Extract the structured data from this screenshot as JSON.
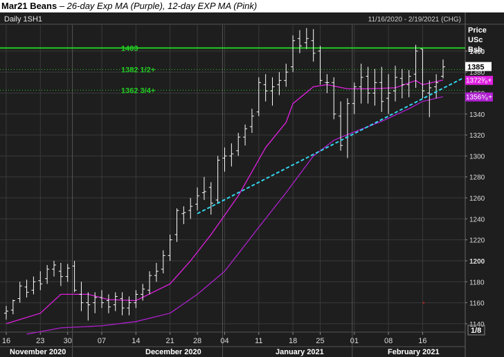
{
  "title": {
    "symbol": "Mar21 Beans",
    "subtitle": " – 26-day Exp MA (Purple), 12-day EXP MA (Pink)"
  },
  "header": {
    "left": "Daily 1SH1",
    "right": "11/16/2020 - 2/19/2021 (CHG)"
  },
  "axis": {
    "label_lines": [
      "Price",
      "USc",
      "Bsh"
    ],
    "y_ticks": [
      "1400",
      "1380",
      "1360",
      "1340",
      "1320",
      "1300",
      "1280",
      "1260",
      "1240",
      "1220",
      "1200",
      "1180",
      "1160",
      "1140"
    ],
    "last_price": "1385",
    "ma_pink_label": "1372³⁄₈+",
    "ma_purple_label": "1356⁵⁄₈+",
    "corner": "1/8"
  },
  "x_axis": {
    "day_ticks": [
      "16",
      "23",
      "30",
      "07",
      "14",
      "21",
      "28",
      "04",
      "11",
      "18",
      "25",
      "01",
      "08",
      "16"
    ],
    "months": [
      "November 2020",
      "December 2020",
      "January 2021",
      "February 2021"
    ]
  },
  "levels": [
    {
      "label": "1403",
      "value": 1403,
      "color": "#22cc22",
      "style": "solid"
    },
    {
      "label": "1382 1/2+",
      "value": 1382.5,
      "color": "#22cc22",
      "style": "dotted"
    },
    {
      "label": "1362 3/4+",
      "value": 1362.75,
      "color": "#22cc22",
      "style": "dotted"
    }
  ],
  "colors": {
    "background": "#1e1e1e",
    "bars": "#ffffff",
    "ma_26_purple": "#b020d0",
    "ma_12_pink": "#e020e0",
    "trendline": "#33d6f0",
    "grid": "#3a3a3a"
  },
  "chart_data": {
    "type": "ohlc",
    "y_range": [
      1132,
      1425
    ],
    "x_range": [
      "2020-11-16",
      "2021-02-19"
    ],
    "bars": [
      {
        "d": "2020-11-16",
        "o": 1150,
        "h": 1157,
        "l": 1144,
        "c": 1152
      },
      {
        "d": "2020-11-17",
        "o": 1153,
        "h": 1163,
        "l": 1149,
        "c": 1162
      },
      {
        "d": "2020-11-18",
        "o": 1164,
        "h": 1180,
        "l": 1160,
        "c": 1176
      },
      {
        "d": "2020-11-19",
        "o": 1175,
        "h": 1182,
        "l": 1165,
        "c": 1170
      },
      {
        "d": "2020-11-20",
        "o": 1172,
        "h": 1185,
        "l": 1168,
        "c": 1180
      },
      {
        "d": "2020-11-23",
        "o": 1181,
        "h": 1190,
        "l": 1172,
        "c": 1178
      },
      {
        "d": "2020-11-24",
        "o": 1183,
        "h": 1196,
        "l": 1178,
        "c": 1192
      },
      {
        "d": "2020-11-25",
        "o": 1192,
        "h": 1200,
        "l": 1185,
        "c": 1196
      },
      {
        "d": "2020-11-27",
        "o": 1190,
        "h": 1198,
        "l": 1176,
        "c": 1185
      },
      {
        "d": "2020-11-30",
        "o": 1185,
        "h": 1197,
        "l": 1180,
        "c": 1193
      },
      {
        "d": "2020-12-01",
        "o": 1195,
        "h": 1200,
        "l": 1170,
        "c": 1172
      },
      {
        "d": "2020-12-02",
        "o": 1168,
        "h": 1180,
        "l": 1152,
        "c": 1160
      },
      {
        "d": "2020-12-03",
        "o": 1160,
        "h": 1170,
        "l": 1143,
        "c": 1158
      },
      {
        "d": "2020-12-04",
        "o": 1160,
        "h": 1170,
        "l": 1150,
        "c": 1165
      },
      {
        "d": "2020-12-07",
        "o": 1165,
        "h": 1172,
        "l": 1155,
        "c": 1160
      },
      {
        "d": "2020-12-08",
        "o": 1162,
        "h": 1168,
        "l": 1150,
        "c": 1156
      },
      {
        "d": "2020-12-09",
        "o": 1158,
        "h": 1170,
        "l": 1152,
        "c": 1166
      },
      {
        "d": "2020-12-10",
        "o": 1164,
        "h": 1170,
        "l": 1148,
        "c": 1155
      },
      {
        "d": "2020-12-11",
        "o": 1155,
        "h": 1166,
        "l": 1148,
        "c": 1160
      },
      {
        "d": "2020-12-14",
        "o": 1160,
        "h": 1172,
        "l": 1155,
        "c": 1168
      },
      {
        "d": "2020-12-15",
        "o": 1168,
        "h": 1178,
        "l": 1162,
        "c": 1173
      },
      {
        "d": "2020-12-16",
        "o": 1172,
        "h": 1190,
        "l": 1168,
        "c": 1186
      },
      {
        "d": "2020-12-17",
        "o": 1186,
        "h": 1198,
        "l": 1180,
        "c": 1190
      },
      {
        "d": "2020-12-18",
        "o": 1192,
        "h": 1210,
        "l": 1188,
        "c": 1205
      },
      {
        "d": "2020-12-21",
        "o": 1205,
        "h": 1225,
        "l": 1200,
        "c": 1220
      },
      {
        "d": "2020-12-22",
        "o": 1225,
        "h": 1250,
        "l": 1218,
        "c": 1248
      },
      {
        "d": "2020-12-23",
        "o": 1245,
        "h": 1252,
        "l": 1235,
        "c": 1246
      },
      {
        "d": "2020-12-24",
        "o": 1248,
        "h": 1260,
        "l": 1240,
        "c": 1252
      },
      {
        "d": "2020-12-28",
        "o": 1254,
        "h": 1270,
        "l": 1248,
        "c": 1262
      },
      {
        "d": "2020-12-29",
        "o": 1265,
        "h": 1280,
        "l": 1258,
        "c": 1266
      },
      {
        "d": "2020-12-30",
        "o": 1270,
        "h": 1275,
        "l": 1244,
        "c": 1255
      },
      {
        "d": "2020-12-31",
        "o": 1258,
        "h": 1300,
        "l": 1255,
        "c": 1296
      },
      {
        "d": "2021-01-04",
        "o": 1298,
        "h": 1308,
        "l": 1285,
        "c": 1300
      },
      {
        "d": "2021-01-05",
        "o": 1300,
        "h": 1312,
        "l": 1290,
        "c": 1302
      },
      {
        "d": "2021-01-06",
        "o": 1305,
        "h": 1322,
        "l": 1300,
        "c": 1318
      },
      {
        "d": "2021-01-07",
        "o": 1318,
        "h": 1330,
        "l": 1310,
        "c": 1326
      },
      {
        "d": "2021-01-08",
        "o": 1328,
        "h": 1345,
        "l": 1322,
        "c": 1338
      },
      {
        "d": "2021-01-11",
        "o": 1342,
        "h": 1375,
        "l": 1338,
        "c": 1370
      },
      {
        "d": "2021-01-12",
        "o": 1368,
        "h": 1378,
        "l": 1352,
        "c": 1362
      },
      {
        "d": "2021-01-13",
        "o": 1362,
        "h": 1375,
        "l": 1348,
        "c": 1366
      },
      {
        "d": "2021-01-14",
        "o": 1368,
        "h": 1380,
        "l": 1358,
        "c": 1372
      },
      {
        "d": "2021-01-15",
        "o": 1372,
        "h": 1388,
        "l": 1366,
        "c": 1380
      },
      {
        "d": "2021-01-19",
        "o": 1385,
        "h": 1415,
        "l": 1380,
        "c": 1410
      },
      {
        "d": "2021-01-20",
        "o": 1412,
        "h": 1420,
        "l": 1398,
        "c": 1405
      },
      {
        "d": "2021-01-21",
        "o": 1408,
        "h": 1422,
        "l": 1402,
        "c": 1412
      },
      {
        "d": "2021-01-22",
        "o": 1410,
        "h": 1421,
        "l": 1390,
        "c": 1398
      },
      {
        "d": "2021-01-25",
        "o": 1400,
        "h": 1405,
        "l": 1368,
        "c": 1372
      },
      {
        "d": "2021-01-26",
        "o": 1370,
        "h": 1378,
        "l": 1360,
        "c": 1370
      },
      {
        "d": "2021-01-27",
        "o": 1370,
        "h": 1375,
        "l": 1335,
        "c": 1340
      },
      {
        "d": "2021-01-28",
        "o": 1338,
        "h": 1352,
        "l": 1305,
        "c": 1310
      },
      {
        "d": "2021-01-29",
        "o": 1318,
        "h": 1355,
        "l": 1298,
        "c": 1350
      },
      {
        "d": "2021-02-01",
        "o": 1350,
        "h": 1370,
        "l": 1340,
        "c": 1366
      },
      {
        "d": "2021-02-02",
        "o": 1366,
        "h": 1388,
        "l": 1350,
        "c": 1375
      },
      {
        "d": "2021-02-03",
        "o": 1376,
        "h": 1385,
        "l": 1350,
        "c": 1360
      },
      {
        "d": "2021-02-04",
        "o": 1360,
        "h": 1383,
        "l": 1348,
        "c": 1370
      },
      {
        "d": "2021-02-05",
        "o": 1370,
        "h": 1385,
        "l": 1342,
        "c": 1352
      },
      {
        "d": "2021-02-08",
        "o": 1355,
        "h": 1378,
        "l": 1340,
        "c": 1360
      },
      {
        "d": "2021-02-09",
        "o": 1362,
        "h": 1386,
        "l": 1352,
        "c": 1375
      },
      {
        "d": "2021-02-10",
        "o": 1374,
        "h": 1383,
        "l": 1355,
        "c": 1368
      },
      {
        "d": "2021-02-11",
        "o": 1368,
        "h": 1382,
        "l": 1356,
        "c": 1376
      },
      {
        "d": "2021-02-12",
        "o": 1378,
        "h": 1406,
        "l": 1365,
        "c": 1400
      },
      {
        "d": "2021-02-16",
        "o": 1402,
        "h": 1402,
        "l": 1355,
        "c": 1362
      },
      {
        "d": "2021-02-17",
        "o": 1360,
        "h": 1372,
        "l": 1337,
        "c": 1365
      },
      {
        "d": "2021-02-18",
        "o": 1366,
        "h": 1378,
        "l": 1355,
        "c": 1370
      },
      {
        "d": "2021-02-19",
        "o": 1376,
        "h": 1392,
        "l": 1374,
        "c": 1385
      }
    ],
    "ma_12_pink": [
      [
        "2020-11-16",
        1140
      ],
      [
        "2020-11-23",
        1150
      ],
      [
        "2020-11-27",
        1168
      ],
      [
        "2020-12-03",
        1168
      ],
      [
        "2020-12-08",
        1163
      ],
      [
        "2020-12-14",
        1162
      ],
      [
        "2020-12-21",
        1178
      ],
      [
        "2020-12-24",
        1200
      ],
      [
        "2020-12-30",
        1225
      ],
      [
        "2021-01-06",
        1262
      ],
      [
        "2021-01-12",
        1308
      ],
      [
        "2021-01-15",
        1332
      ],
      [
        "2021-01-19",
        1350
      ],
      [
        "2021-01-22",
        1366
      ],
      [
        "2021-01-26",
        1368
      ],
      [
        "2021-01-29",
        1364
      ],
      [
        "2021-02-03",
        1364
      ],
      [
        "2021-02-09",
        1365
      ],
      [
        "2021-02-12",
        1372
      ],
      [
        "2021-02-16",
        1368
      ],
      [
        "2021-02-19",
        1372.4
      ]
    ],
    "ma_26_purple": [
      [
        "2020-11-19",
        1130
      ],
      [
        "2020-11-27",
        1136
      ],
      [
        "2020-12-07",
        1138
      ],
      [
        "2020-12-14",
        1142
      ],
      [
        "2020-12-21",
        1150
      ],
      [
        "2020-12-28",
        1168
      ],
      [
        "2021-01-04",
        1190
      ],
      [
        "2021-01-11",
        1232
      ],
      [
        "2021-01-15",
        1265
      ],
      [
        "2021-01-22",
        1300
      ],
      [
        "2021-01-27",
        1315
      ],
      [
        "2021-02-01",
        1323
      ],
      [
        "2021-02-05",
        1333
      ],
      [
        "2021-02-11",
        1345
      ],
      [
        "2021-02-16",
        1352
      ],
      [
        "2021-02-19",
        1356.6
      ]
    ],
    "trendline": [
      [
        "2020-12-28",
        1245
      ],
      [
        "2021-02-19",
        1374
      ]
    ]
  }
}
